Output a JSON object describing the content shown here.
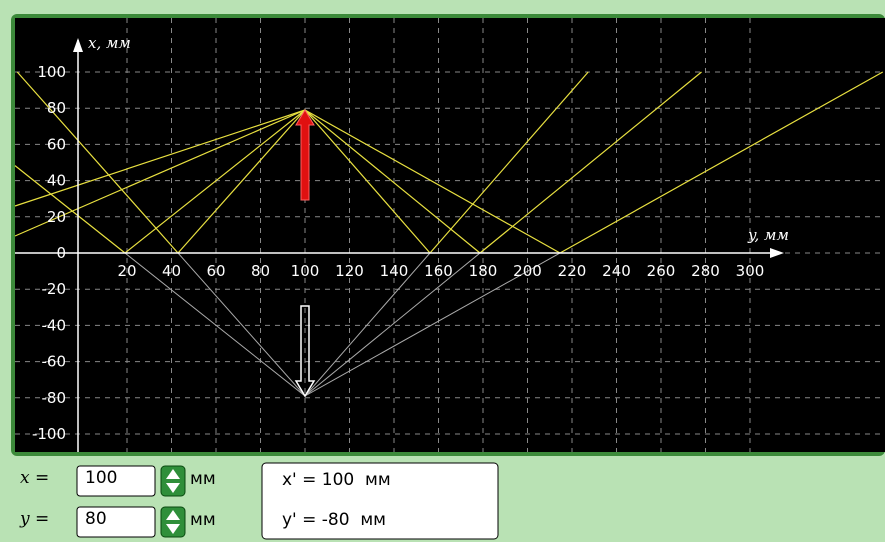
{
  "plot": {
    "x_axis_label": "y, мм",
    "y_axis_label": "x, мм",
    "hticks": [
      20,
      40,
      60,
      80,
      100,
      120,
      140,
      160,
      180,
      200,
      220,
      240,
      260,
      280,
      300
    ],
    "vticks": [
      100,
      80,
      60,
      40,
      20,
      0,
      -20,
      -40,
      -60,
      -80,
      -100
    ]
  },
  "controls": {
    "x_label": "x =",
    "x_value": "100",
    "x_unit": "мм",
    "y_label": "y =",
    "y_value": "80",
    "y_unit": "мм",
    "result_x": "x' = 100  мм",
    "result_y": "y' = -80  мм"
  }
}
